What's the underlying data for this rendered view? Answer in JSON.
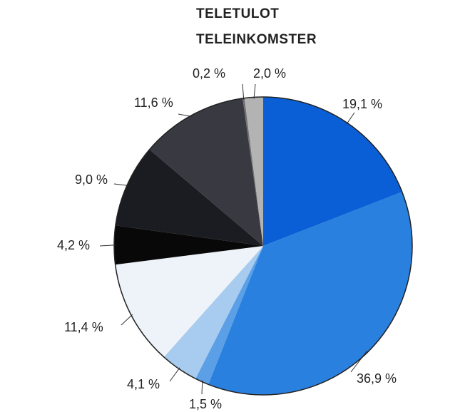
{
  "chart_data": {
    "type": "pie",
    "title": "TELETULOT",
    "subtitle": "TELEINKOMSTER",
    "values": [
      19.1,
      36.9,
      1.5,
      4.1,
      11.4,
      4.2,
      9.0,
      11.6,
      0.2,
      2.0
    ],
    "value_labels": [
      "19,1 %",
      "36,9 %",
      "1,5 %",
      "4,1 %",
      "11,4 %",
      "4,2 %",
      "9,0 %",
      "11,6 %",
      "0,2 %",
      "2,0 %"
    ],
    "colors": [
      "#0b5fd6",
      "#2a80df",
      "#5b9fe6",
      "#a8ccef",
      "#eef3f9",
      "#080808",
      "#1b1c21",
      "#393a41",
      "#707070",
      "#b3b3b3"
    ]
  }
}
